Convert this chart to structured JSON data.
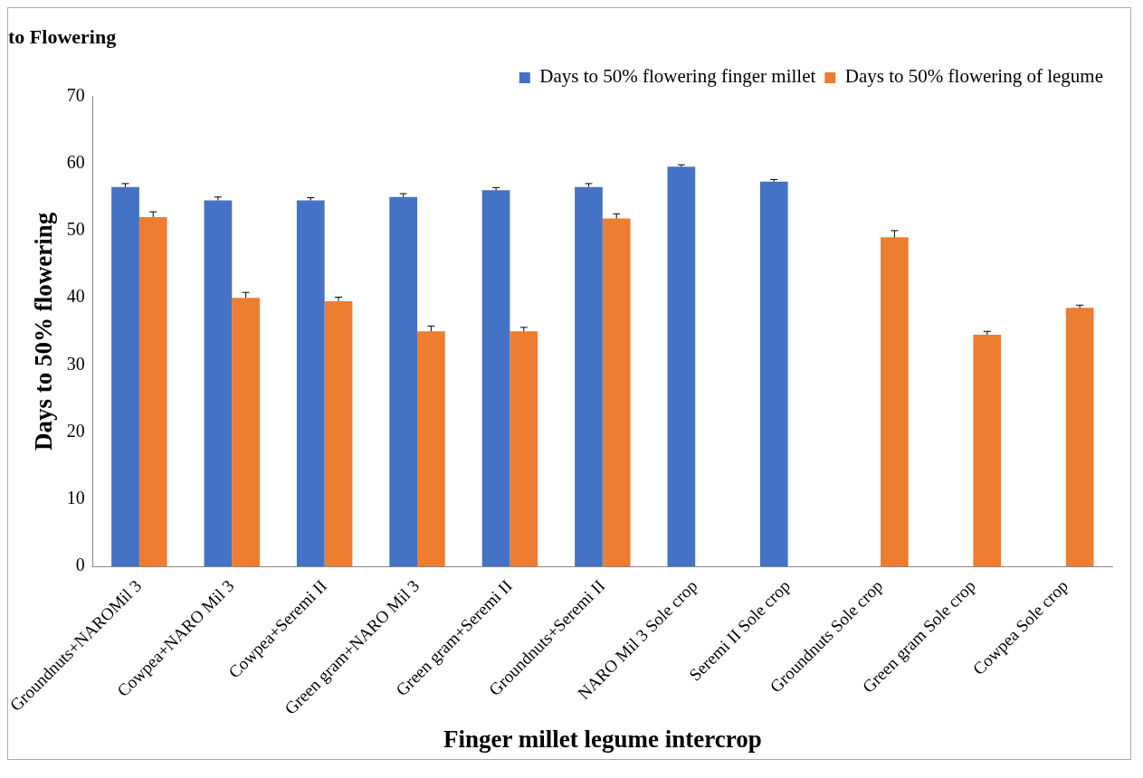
{
  "chart_data": {
    "type": "bar",
    "title": "to Flowering",
    "xlabel": "Finger millet legume intercrop",
    "ylabel": "Days to 50% flowering",
    "categories": [
      "Groundnuts+NAROMil 3",
      "Cowpea+NARO Mil 3",
      "Cowpea+Seremi II",
      "Green gram+NARO Mil 3",
      "Green gram+Seremi II",
      "Groundnuts+Seremi II",
      "NARO Mil 3 Sole crop",
      "Seremi II Sole crop",
      "Groundnuts Sole crop",
      "Green gram Sole crop",
      "Cowpea Sole crop"
    ],
    "series": [
      {
        "name": "Days to 50% flowering finger millet",
        "color": "#4472c4",
        "values": [
          56.5,
          54.5,
          54.5,
          55,
          56,
          56.5,
          59.5,
          57.3,
          null,
          null,
          null
        ],
        "errors": [
          [
            56.5,
            57
          ],
          [
            54.5,
            55
          ],
          [
            54.5,
            54.9
          ],
          [
            55,
            55.5
          ],
          [
            56,
            56.4
          ],
          [
            56.5,
            57
          ],
          [
            59.5,
            59.8
          ],
          [
            57.3,
            57.6
          ],
          null,
          null,
          null
        ]
      },
      {
        "name": "Days to 50% flowering of legume",
        "color": "#ed7d31",
        "values": [
          52,
          40,
          39.5,
          35,
          35,
          51.8,
          null,
          null,
          49,
          34.5,
          38.5
        ],
        "errors": [
          [
            52,
            52.8
          ],
          [
            40,
            40.8
          ],
          [
            39.5,
            40.1
          ],
          [
            35,
            35.8
          ],
          [
            35,
            35.6
          ],
          [
            51.8,
            52.5
          ],
          null,
          null,
          [
            49,
            50
          ],
          [
            34.5,
            35
          ],
          [
            38.5,
            38.9
          ]
        ]
      }
    ],
    "ylim": [
      0,
      70
    ],
    "yticks": [
      0,
      10,
      20,
      30,
      40,
      50,
      60,
      70
    ],
    "grid": false,
    "legend": "top right"
  }
}
